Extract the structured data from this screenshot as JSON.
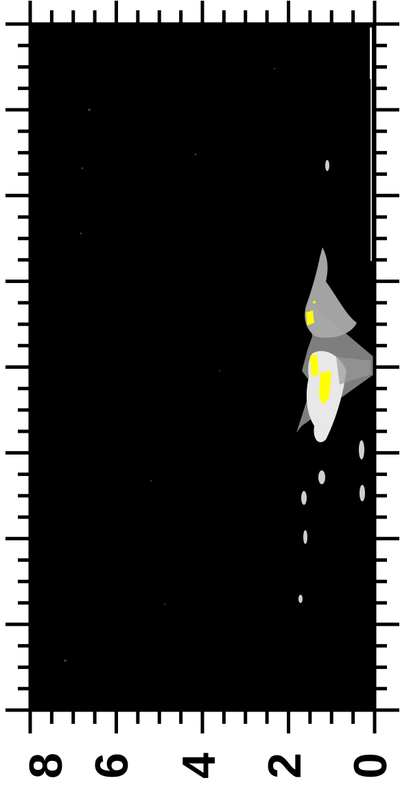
{
  "figure": {
    "kind": "radar-echo-panel",
    "rotated": true,
    "colors": {
      "background": "#000000",
      "frame": "#000000",
      "page": "#ffffff",
      "echo": "#bfbfbf",
      "echo_bright": "#e8e8e8",
      "highlight": "#ffff00"
    },
    "axis": {
      "tick_labels": [
        "8",
        "6",
        "4",
        "2",
        "0"
      ],
      "tick_values": [
        8,
        6,
        4,
        2,
        0
      ],
      "range": [
        8,
        0
      ]
    }
  }
}
